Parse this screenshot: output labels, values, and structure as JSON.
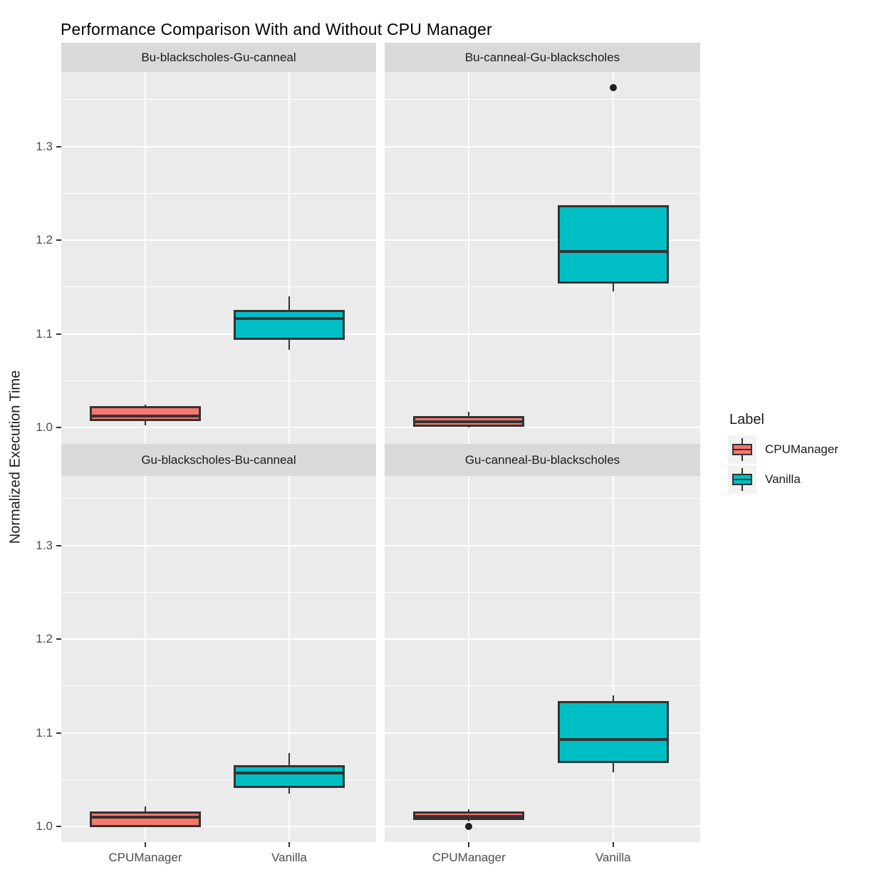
{
  "title": "Performance Comparison With and Without CPU Manager",
  "y_axis": {
    "label": "Normalized Execution Time",
    "tick_labels": [
      "1.3",
      "1.2",
      "1.1",
      "1.0"
    ]
  },
  "x_axis": {
    "tick_labels": [
      "CPUManager",
      "Vanilla"
    ]
  },
  "legend": {
    "title": "Label",
    "entries": [
      {
        "label": "CPUManager",
        "color": "#F8766D"
      },
      {
        "label": "Vanilla",
        "color": "#00BFC4"
      }
    ]
  },
  "colors": {
    "panel_bg": "#EBEBEB",
    "strip_bg": "#D9D9D9",
    "gridline": "#FFFFFF",
    "box_outline": "#333333",
    "outlier": "#1F1F1F",
    "axis_text": "#4D4D4D"
  },
  "chart_data": {
    "type": "boxplot",
    "title": "Performance Comparison With and Without CPU Manager",
    "xlabel": "",
    "ylabel": "Normalized Execution Time",
    "ylim": [
      0.98,
      1.38
    ],
    "y_major_ticks": [
      1.0,
      1.1,
      1.2,
      1.3
    ],
    "y_minor_ticks": [
      1.05,
      1.15,
      1.25,
      1.35
    ],
    "grid": "on",
    "legend_position": "right",
    "legend_title": "Label",
    "groups": [
      "CPUManager",
      "Vanilla"
    ],
    "group_colors": {
      "CPUManager": "#F8766D",
      "Vanilla": "#00BFC4"
    },
    "facets": [
      {
        "label": "Bu-blackscholes-Gu-canneal",
        "boxes": [
          {
            "group": "CPUManager",
            "min": 1.002,
            "q1": 1.008,
            "median": 1.012,
            "q3": 1.022,
            "max": 1.024,
            "outliers": []
          },
          {
            "group": "Vanilla",
            "min": 1.083,
            "q1": 1.095,
            "median": 1.116,
            "q3": 1.124,
            "max": 1.14,
            "outliers": []
          }
        ]
      },
      {
        "label": "Bu-canneal-Gu-blackscholes",
        "boxes": [
          {
            "group": "CPUManager",
            "min": 1.0,
            "q1": 1.002,
            "median": 1.006,
            "q3": 1.011,
            "max": 1.017,
            "outliers": []
          },
          {
            "group": "Vanilla",
            "min": 1.145,
            "q1": 1.155,
            "median": 1.188,
            "q3": 1.236,
            "max": 1.236,
            "outliers": [
              1.363
            ]
          }
        ]
      },
      {
        "label": "Gu-blackscholes-Bu-canneal",
        "boxes": [
          {
            "group": "CPUManager",
            "min": 1.0,
            "q1": 1.0,
            "median": 1.01,
            "q3": 1.015,
            "max": 1.021,
            "outliers": []
          },
          {
            "group": "Vanilla",
            "min": 1.035,
            "q1": 1.042,
            "median": 1.057,
            "q3": 1.064,
            "max": 1.078,
            "outliers": []
          }
        ]
      },
      {
        "label": "Gu-canneal-Bu-blackscholes",
        "boxes": [
          {
            "group": "CPUManager",
            "min": 1.005,
            "q1": 1.008,
            "median": 1.011,
            "q3": 1.015,
            "max": 1.018,
            "outliers": [
              1.0
            ]
          },
          {
            "group": "Vanilla",
            "min": 1.058,
            "q1": 1.069,
            "median": 1.093,
            "q3": 1.133,
            "max": 1.14,
            "outliers": []
          }
        ]
      }
    ]
  }
}
